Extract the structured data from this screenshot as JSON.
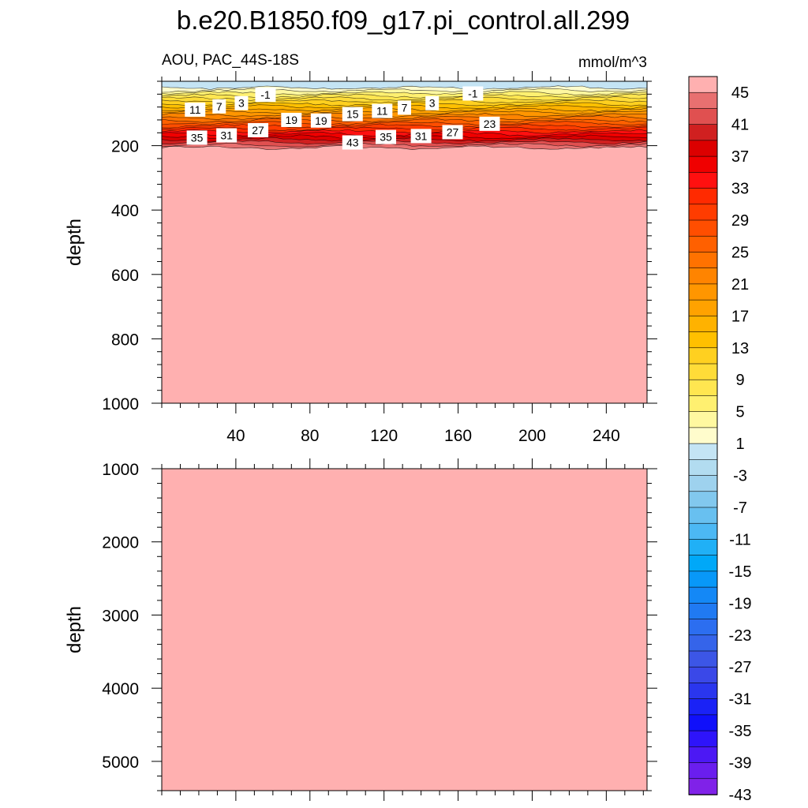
{
  "chart_data": {
    "type": "heatmap",
    "title": "b.e20.B1850.f09_g17.pi_control.all.299",
    "subtitle_left": "AOU, PAC_44S-18S",
    "subtitle_right": "mmol/m^3",
    "colors": {
      "deep": "#ffb0b0",
      "surface": "#c4e4f4",
      "contour_line": "#000000"
    },
    "panels": [
      {
        "name": "upper",
        "ylabel": "depth",
        "ylim": [
          0,
          1000
        ],
        "y_ticks": [
          200,
          400,
          600,
          800,
          1000
        ],
        "xlim": [
          0,
          262
        ],
        "x_ticks": [
          40,
          80,
          120,
          160,
          200,
          240
        ],
        "show_x_tick_labels": true
      },
      {
        "name": "lower",
        "ylabel": "depth",
        "ylim": [
          1000,
          5400
        ],
        "y_ticks": [
          1000,
          2000,
          3000,
          4000,
          5000
        ],
        "xlim": [
          0,
          262
        ],
        "x_ticks": [
          40,
          80,
          120,
          160,
          200,
          240
        ],
        "show_x_tick_labels": false
      }
    ],
    "contour_labels": [
      {
        "text": "-1",
        "x": 56,
        "depth": 42
      },
      {
        "text": "-1",
        "x": 168,
        "depth": 38
      },
      {
        "text": "11",
        "x": 18,
        "depth": 88
      },
      {
        "text": "7",
        "x": 31,
        "depth": 78
      },
      {
        "text": "3",
        "x": 43,
        "depth": 68
      },
      {
        "text": "19",
        "x": 70,
        "depth": 120
      },
      {
        "text": "19",
        "x": 86,
        "depth": 122
      },
      {
        "text": "15",
        "x": 103,
        "depth": 102
      },
      {
        "text": "11",
        "x": 119,
        "depth": 92
      },
      {
        "text": "7",
        "x": 131,
        "depth": 82
      },
      {
        "text": "3",
        "x": 146,
        "depth": 68
      },
      {
        "text": "35",
        "x": 19,
        "depth": 175
      },
      {
        "text": "31",
        "x": 35,
        "depth": 168
      },
      {
        "text": "27",
        "x": 52,
        "depth": 152
      },
      {
        "text": "43",
        "x": 103,
        "depth": 190
      },
      {
        "text": "35",
        "x": 121,
        "depth": 173
      },
      {
        "text": "31",
        "x": 140,
        "depth": 170
      },
      {
        "text": "27",
        "x": 157,
        "depth": 158
      },
      {
        "text": "23",
        "x": 177,
        "depth": 132
      }
    ],
    "colorbar": {
      "labels": [
        "45",
        "41",
        "37",
        "33",
        "29",
        "25",
        "21",
        "17",
        "13",
        "9",
        "5",
        "1",
        "-3",
        "-7",
        "-11",
        "-15",
        "-19",
        "-23",
        "-27",
        "-31",
        "-35",
        "-39",
        "-43"
      ],
      "colors": [
        "#ffb0b0",
        "#e87070",
        "#e05050",
        "#d02020",
        "#dc0000",
        "#f00000",
        "#ff1010",
        "#ff2a00",
        "#ff3c00",
        "#ff4e00",
        "#ff6000",
        "#ff7200",
        "#ff8400",
        "#ff9600",
        "#ffa200",
        "#ffb200",
        "#ffc000",
        "#ffd020",
        "#ffdc38",
        "#ffe650",
        "#fff070",
        "#fff8a0",
        "#fffccc",
        "#c4e4f4",
        "#b2dcf0",
        "#9ed2ee",
        "#82c8ee",
        "#68c0f0",
        "#4cb8f4",
        "#20b0f6",
        "#00a8f8",
        "#0898f8",
        "#1488f6",
        "#207af2",
        "#2c6ef0",
        "#3564ea",
        "#3c56e6",
        "#3a48e8",
        "#2a36ee",
        "#1a22f6",
        "#1010fa",
        "#2e14fa",
        "#4c18f4",
        "#6a1eee",
        "#8022e8"
      ]
    }
  }
}
